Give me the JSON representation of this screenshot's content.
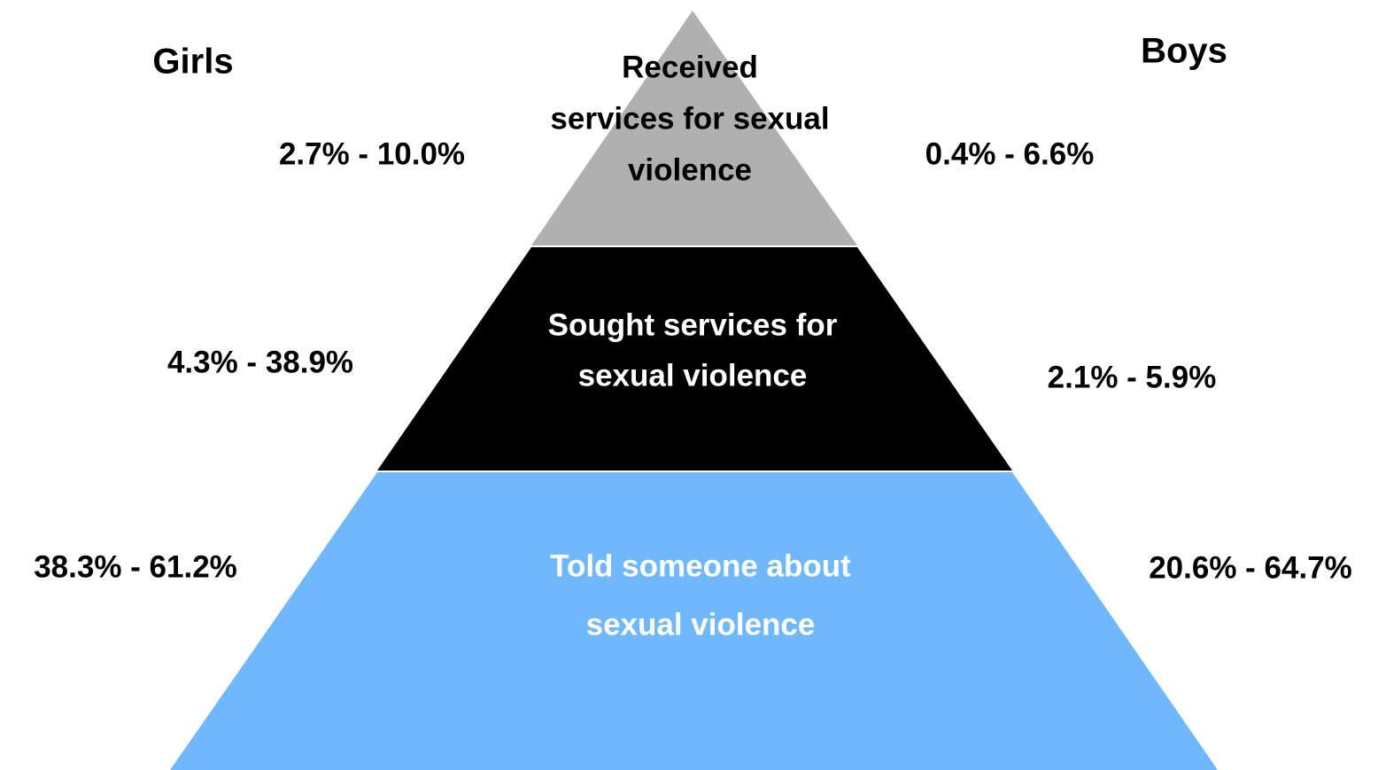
{
  "headers": {
    "left": "Girls",
    "right": "Boys"
  },
  "tiers": [
    {
      "label_lines": [
        "Received",
        "services for sexual",
        "violence"
      ],
      "girls": "2.7% - 10.0%",
      "boys": "0.4% - 6.6%"
    },
    {
      "label_lines": [
        "Sought services for",
        "sexual violence"
      ],
      "girls": "4.3% - 38.9%",
      "boys": "2.1% - 5.9%"
    },
    {
      "label_lines": [
        "Told someone about",
        "sexual violence"
      ],
      "girls": "38.3% - 61.2%",
      "boys": "20.6% - 64.7%"
    }
  ]
}
